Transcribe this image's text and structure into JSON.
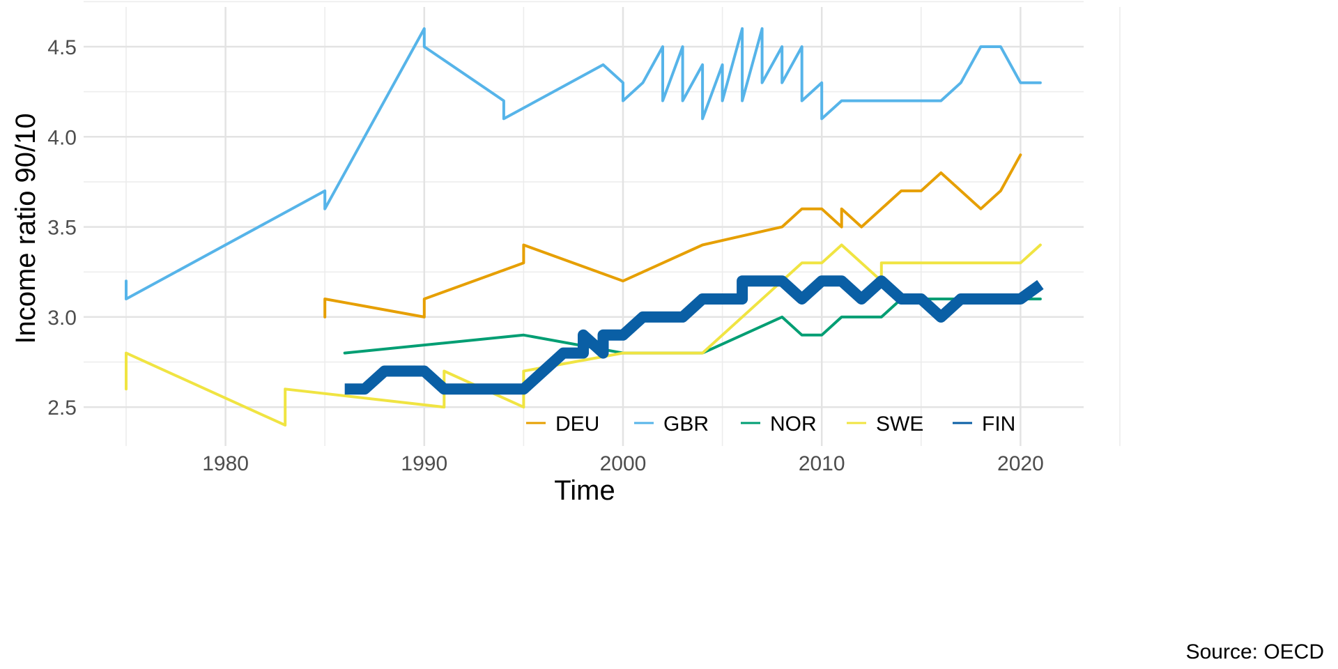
{
  "chart_data": {
    "type": "line",
    "xlabel": "Time",
    "ylabel": "Income ratio 90/10",
    "caption": "Source: OECD",
    "xlim": [
      1973,
      2023
    ],
    "ylim": [
      2.37,
      4.7
    ],
    "x_ticks": [
      1980,
      1990,
      2000,
      2010,
      2020
    ],
    "x_tick_labels": [
      "1980",
      "1990",
      "2000",
      "2010",
      "2020"
    ],
    "y_ticks": [
      2.5,
      3.0,
      3.5,
      4.0,
      4.5
    ],
    "y_tick_labels": [
      "2.5",
      "3.0",
      "3.5",
      "4.0",
      "4.5"
    ],
    "grid": true,
    "legend_position": "bottom-right",
    "series": [
      {
        "name": "DEU",
        "color": "#E69F00",
        "width": 4,
        "points": [
          [
            1985,
            3.0
          ],
          [
            1985,
            3.1
          ],
          [
            1990,
            3.0
          ],
          [
            1990,
            3.1
          ],
          [
            1995,
            3.3
          ],
          [
            1995,
            3.4
          ],
          [
            2000,
            3.2
          ],
          [
            2004,
            3.4
          ],
          [
            2008,
            3.5
          ],
          [
            2009,
            3.6
          ],
          [
            2010,
            3.6
          ],
          [
            2011,
            3.5
          ],
          [
            2011,
            3.6
          ],
          [
            2012,
            3.5
          ],
          [
            2014,
            3.7
          ],
          [
            2015,
            3.7
          ],
          [
            2016,
            3.8
          ],
          [
            2018,
            3.6
          ],
          [
            2019,
            3.7
          ],
          [
            2020,
            3.9
          ]
        ]
      },
      {
        "name": "GBR",
        "color": "#56B4E9",
        "width": 4,
        "points": [
          [
            1975,
            3.2
          ],
          [
            1975,
            3.1
          ],
          [
            1985,
            3.7
          ],
          [
            1985,
            3.6
          ],
          [
            1990,
            4.6
          ],
          [
            1990,
            4.5
          ],
          [
            1994,
            4.2
          ],
          [
            1994,
            4.1
          ],
          [
            1999,
            4.4
          ],
          [
            2000,
            4.3
          ],
          [
            2000,
            4.2
          ],
          [
            2001,
            4.3
          ],
          [
            2002,
            4.5
          ],
          [
            2002,
            4.2
          ],
          [
            2003,
            4.5
          ],
          [
            2003,
            4.2
          ],
          [
            2004,
            4.4
          ],
          [
            2004,
            4.1
          ],
          [
            2005,
            4.4
          ],
          [
            2005,
            4.2
          ],
          [
            2006,
            4.6
          ],
          [
            2006,
            4.2
          ],
          [
            2007,
            4.6
          ],
          [
            2007,
            4.3
          ],
          [
            2008,
            4.5
          ],
          [
            2008,
            4.3
          ],
          [
            2009,
            4.5
          ],
          [
            2009,
            4.2
          ],
          [
            2010,
            4.3
          ],
          [
            2010,
            4.1
          ],
          [
            2011,
            4.2
          ],
          [
            2016,
            4.2
          ],
          [
            2017,
            4.3
          ],
          [
            2018,
            4.5
          ],
          [
            2019,
            4.5
          ],
          [
            2020,
            4.3
          ],
          [
            2021,
            4.3
          ]
        ]
      },
      {
        "name": "NOR",
        "color": "#009E73",
        "width": 4,
        "points": [
          [
            1986,
            2.8
          ],
          [
            1995,
            2.9
          ],
          [
            2000,
            2.8
          ],
          [
            2004,
            2.8
          ],
          [
            2008,
            3.0
          ],
          [
            2009,
            2.9
          ],
          [
            2010,
            2.9
          ],
          [
            2011,
            3.0
          ],
          [
            2013,
            3.0
          ],
          [
            2014,
            3.1
          ],
          [
            2021,
            3.1
          ]
        ]
      },
      {
        "name": "SWE",
        "color": "#F0E442",
        "width": 4,
        "points": [
          [
            1975,
            2.6
          ],
          [
            1975,
            2.8
          ],
          [
            1983,
            2.4
          ],
          [
            1983,
            2.6
          ],
          [
            1991,
            2.5
          ],
          [
            1991,
            2.7
          ],
          [
            1995,
            2.5
          ],
          [
            1995,
            2.7
          ],
          [
            2000,
            2.8
          ],
          [
            2004,
            2.8
          ],
          [
            2008,
            3.2
          ],
          [
            2009,
            3.3
          ],
          [
            2010,
            3.3
          ],
          [
            2011,
            3.4
          ],
          [
            2013,
            3.2
          ],
          [
            2013,
            3.3
          ],
          [
            2020,
            3.3
          ],
          [
            2021,
            3.4
          ]
        ]
      },
      {
        "name": "FIN",
        "color": "#0A5FA5",
        "width": 16,
        "points": [
          [
            1986,
            2.6
          ],
          [
            1987,
            2.6
          ],
          [
            1988,
            2.7
          ],
          [
            1990,
            2.7
          ],
          [
            1991,
            2.6
          ],
          [
            1995,
            2.6
          ],
          [
            1997,
            2.8
          ],
          [
            1998,
            2.8
          ],
          [
            1998,
            2.9
          ],
          [
            1999,
            2.8
          ],
          [
            1999,
            2.9
          ],
          [
            2000,
            2.9
          ],
          [
            2001,
            3.0
          ],
          [
            2003,
            3.0
          ],
          [
            2004,
            3.1
          ],
          [
            2006,
            3.1
          ],
          [
            2006,
            3.2
          ],
          [
            2008,
            3.2
          ],
          [
            2009,
            3.1
          ],
          [
            2010,
            3.2
          ],
          [
            2011,
            3.2
          ],
          [
            2012,
            3.1
          ],
          [
            2013,
            3.2
          ],
          [
            2014,
            3.1
          ],
          [
            2015,
            3.1
          ],
          [
            2016,
            3.0
          ],
          [
            2017,
            3.1
          ],
          [
            2020,
            3.1
          ],
          [
            2021,
            3.18
          ]
        ]
      }
    ]
  }
}
